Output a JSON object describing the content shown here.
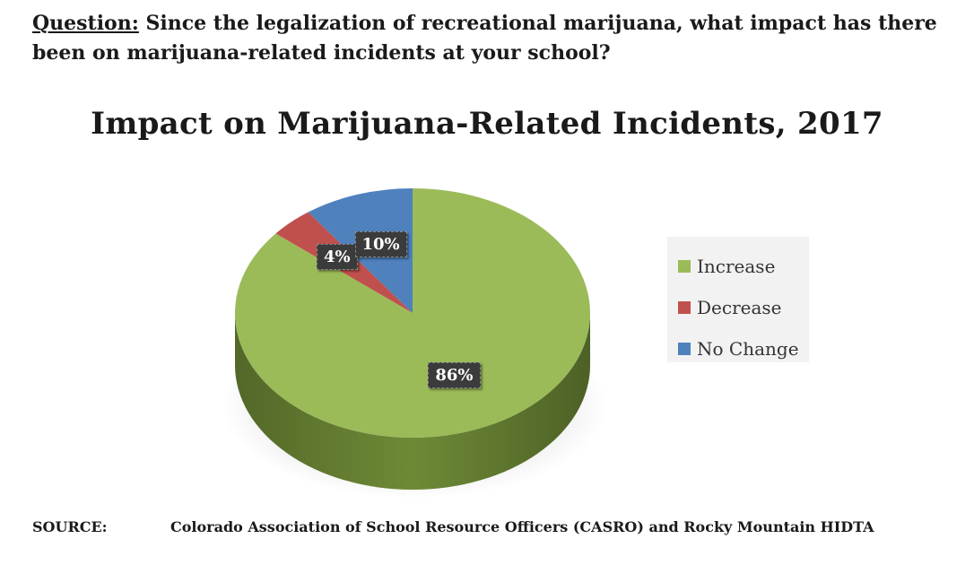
{
  "question": {
    "label": "Question:",
    "text": " Since the legalization of recreational marijuana, what impact has there been on marijuana-related incidents at your school?"
  },
  "chart_data": {
    "type": "pie",
    "title": "Impact on Marijuana-Related Incidents, 2017",
    "slices": [
      {
        "name": "Increase",
        "value": 86,
        "label": "86%",
        "color": "#9bbb59",
        "side_color": "#6e8a36"
      },
      {
        "name": "Decrease",
        "value": 4,
        "label": "4%",
        "color": "#c0504d",
        "side_color": "#8c3330"
      },
      {
        "name": "No Change",
        "value": 10,
        "label": "10%",
        "color": "#4f81bd",
        "side_color": "#34588a"
      }
    ],
    "legend_position": "right"
  },
  "source": {
    "label": "SOURCE:",
    "text": "Colorado Association of School Resource Officers (CASRO) and Rocky Mountain HIDTA"
  }
}
